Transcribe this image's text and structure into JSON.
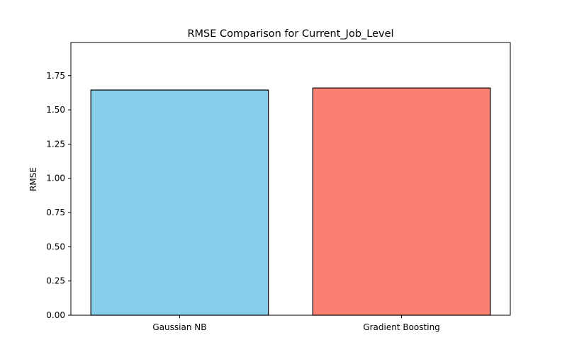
{
  "chart_data": {
    "type": "bar",
    "title": "RMSE Comparison for Current_Job_Level",
    "xlabel": "",
    "ylabel": "RMSE",
    "categories": [
      "Gaussian NB",
      "Gradient Boosting"
    ],
    "values": [
      1.645,
      1.66
    ],
    "colors": [
      "#87ceeb",
      "#fa8072"
    ],
    "edge_color": "#000000",
    "ylim": [
      0,
      1.992
    ],
    "yticks": [
      0.0,
      0.25,
      0.5,
      0.75,
      1.0,
      1.25,
      1.5,
      1.75
    ],
    "ytick_labels": [
      "0.00",
      "0.25",
      "0.50",
      "0.75",
      "1.00",
      "1.25",
      "1.50",
      "1.75"
    ],
    "grid": false,
    "legend": "none"
  }
}
